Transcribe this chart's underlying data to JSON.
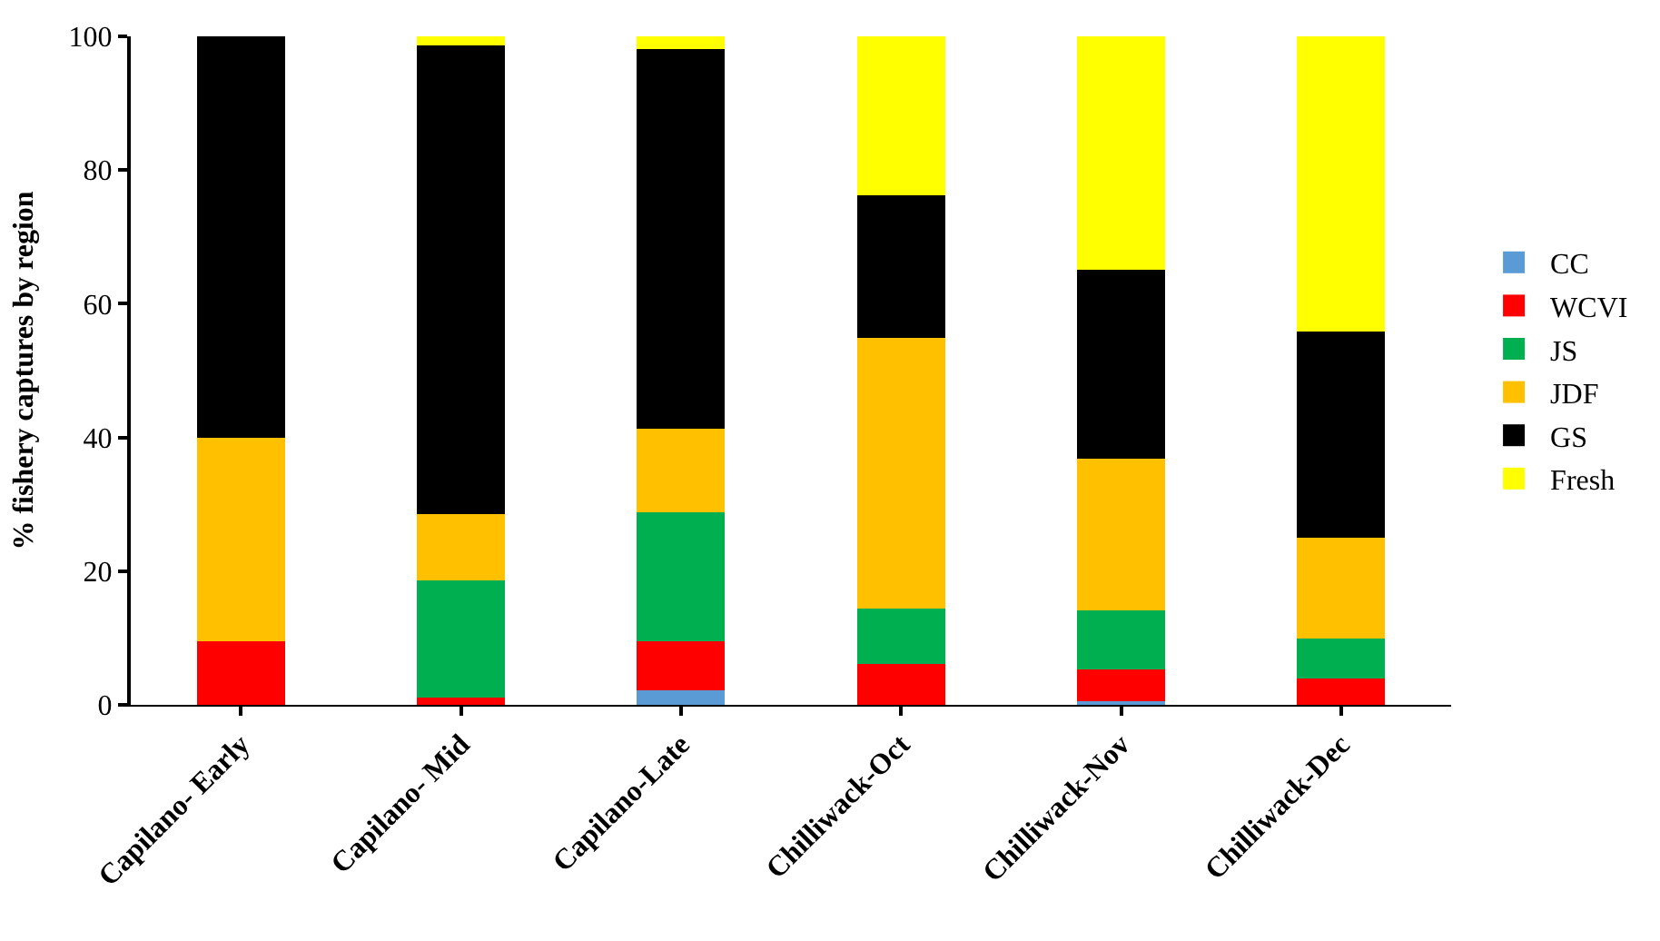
{
  "chart_data": {
    "type": "bar",
    "stacked": true,
    "ylabel": "% fishery captures by region",
    "categories": [
      "Capilano- Early",
      "Capilano- Mid",
      "Capilano-Late",
      "Chilliwack-Oct",
      "Chilliwack-Nov",
      "Chilliwack-Dec"
    ],
    "series": [
      {
        "name": "CC",
        "color": "#5b9bd5",
        "values": [
          0,
          0,
          2.2,
          0,
          0.5,
          0
        ]
      },
      {
        "name": "WCVI",
        "color": "#ff0000",
        "values": [
          9.5,
          1.1,
          7.3,
          6.1,
          4.8,
          4.0
        ]
      },
      {
        "name": "JS",
        "color": "#00b050",
        "values": [
          0,
          17.5,
          19.3,
          8.3,
          8.8,
          5.9
        ]
      },
      {
        "name": "JDF",
        "color": "#ffc000",
        "values": [
          30.5,
          9.9,
          12.5,
          40.5,
          22.7,
          15.1
        ]
      },
      {
        "name": "GS",
        "color": "#000000",
        "values": [
          60,
          70.1,
          56.8,
          21.3,
          28.3,
          30.8
        ]
      },
      {
        "name": "Fresh",
        "color": "#ffff00",
        "values": [
          0,
          1.4,
          1.9,
          23.8,
          35.1,
          44.2
        ]
      }
    ],
    "ylim": [
      0,
      100
    ],
    "yticks": [
      0,
      20,
      40,
      60,
      80,
      100
    ],
    "legend": "right"
  }
}
